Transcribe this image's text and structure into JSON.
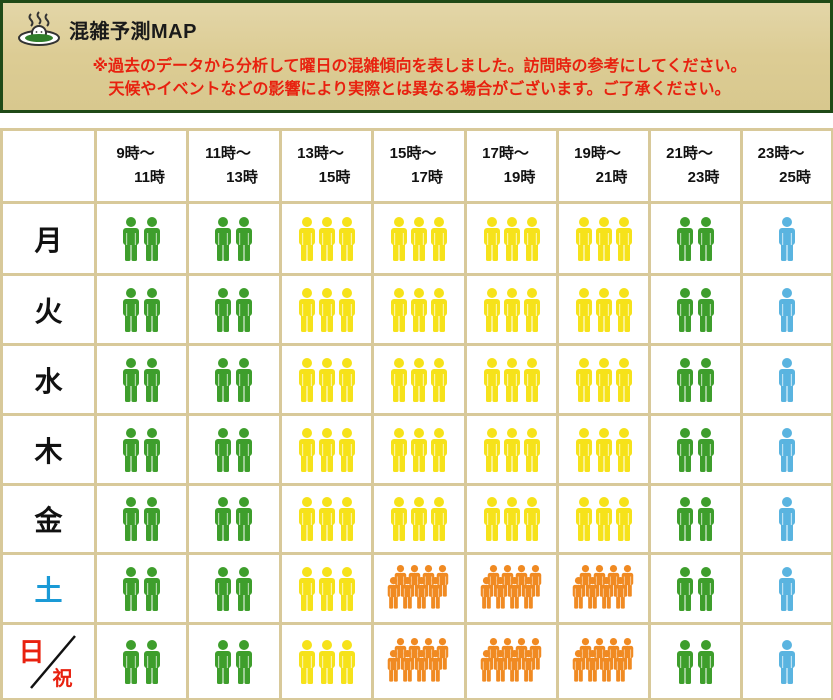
{
  "header": {
    "title": "混雑予測MAP",
    "note_line1": "※過去のデータから分析して曜日の混雑傾向を表しました。訪問時の参考にしてください。",
    "note_line2": "天候やイベントなどの影響により実際とは異なる場合がございます。ご了承ください。"
  },
  "colors": {
    "low": "#5ab4e0",
    "normal": "#3e9e2c",
    "busy": "#f6e21a",
    "very_busy": "#f08a22"
  },
  "time_slots": [
    {
      "from": "9時〜",
      "to": "11時"
    },
    {
      "from": "11時〜",
      "to": "13時"
    },
    {
      "from": "13時〜",
      "to": "15時"
    },
    {
      "from": "15時〜",
      "to": "17時"
    },
    {
      "from": "17時〜",
      "to": "19時"
    },
    {
      "from": "19時〜",
      "to": "21時"
    },
    {
      "from": "21時〜",
      "to": "23時"
    },
    {
      "from": "23時〜",
      "to": "25時"
    }
  ],
  "days": [
    {
      "label": "月",
      "levels": [
        "normal",
        "normal",
        "busy",
        "busy",
        "busy",
        "busy",
        "normal",
        "low"
      ]
    },
    {
      "label": "火",
      "levels": [
        "normal",
        "normal",
        "busy",
        "busy",
        "busy",
        "busy",
        "normal",
        "low"
      ]
    },
    {
      "label": "水",
      "levels": [
        "normal",
        "normal",
        "busy",
        "busy",
        "busy",
        "busy",
        "normal",
        "low"
      ]
    },
    {
      "label": "木",
      "levels": [
        "normal",
        "normal",
        "busy",
        "busy",
        "busy",
        "busy",
        "normal",
        "low"
      ]
    },
    {
      "label": "金",
      "levels": [
        "normal",
        "normal",
        "busy",
        "busy",
        "busy",
        "busy",
        "normal",
        "low"
      ]
    },
    {
      "label": "土",
      "levels": [
        "normal",
        "normal",
        "busy",
        "very_busy",
        "very_busy",
        "very_busy",
        "normal",
        "low"
      ]
    },
    {
      "label_hi": "日",
      "label_iwai": "祝",
      "levels": [
        "normal",
        "normal",
        "busy",
        "very_busy",
        "very_busy",
        "very_busy",
        "normal",
        "low"
      ]
    }
  ]
}
